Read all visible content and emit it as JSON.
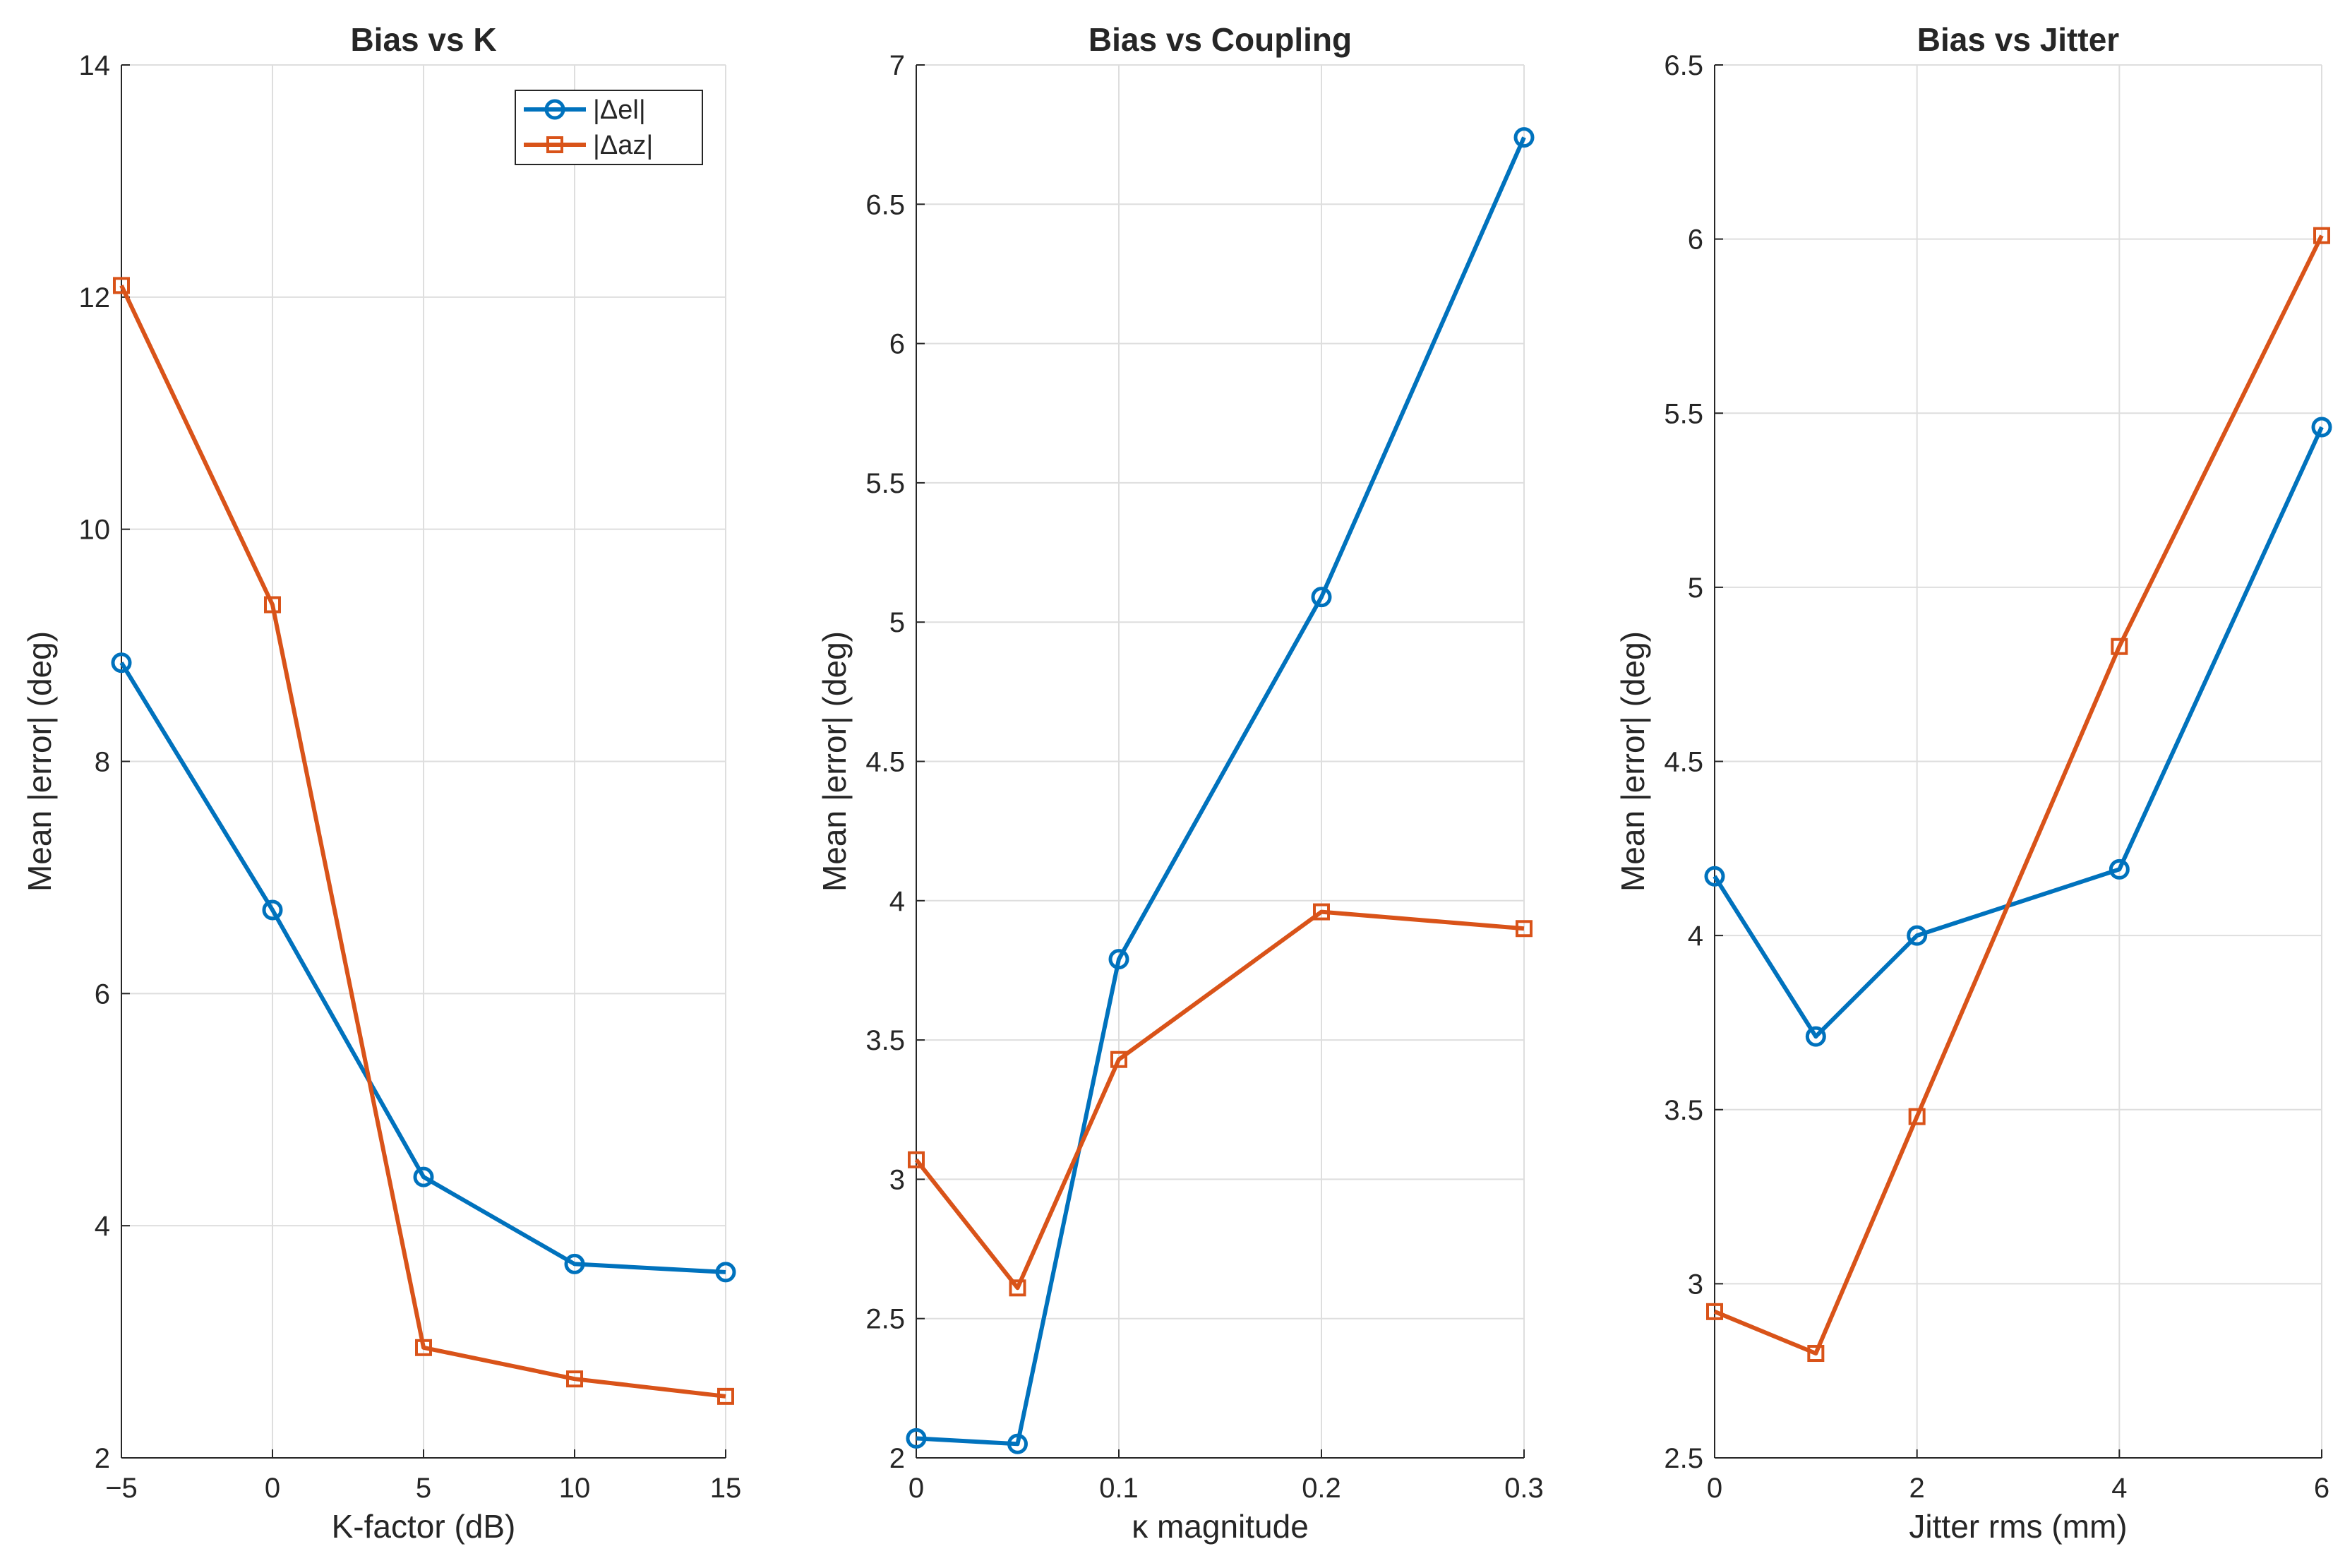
{
  "colors": {
    "series1": "#0072BD",
    "series2": "#D95319",
    "grid": "#dedede",
    "axis": "#262626"
  },
  "chart_data": [
    {
      "type": "line",
      "title": "Bias vs K",
      "xlabel": "K-factor (dB)",
      "ylabel": "Mean |error| (deg)",
      "xlim": [
        -5,
        15
      ],
      "ylim": [
        2,
        14
      ],
      "xticks": [
        -5,
        0,
        5,
        10,
        15
      ],
      "xtick_labels": [
        "−5",
        "0",
        "5",
        "10",
        "15"
      ],
      "yticks": [
        2,
        4,
        6,
        8,
        10,
        12,
        14
      ],
      "ytick_labels": [
        "2",
        "4",
        "6",
        "8",
        "10",
        "12",
        "14"
      ],
      "grid": true,
      "legend": "top-right",
      "x": [
        -5,
        0,
        5,
        10,
        15
      ],
      "series": [
        {
          "name": "|Δel|",
          "marker": "circle",
          "values": [
            8.85,
            6.72,
            4.42,
            3.67,
            3.6
          ]
        },
        {
          "name": "|Δaz|",
          "marker": "square",
          "values": [
            12.1,
            9.35,
            2.95,
            2.68,
            2.53
          ]
        }
      ]
    },
    {
      "type": "line",
      "title": "Bias vs Coupling",
      "xlabel": "κ  magnitude",
      "ylabel": "Mean |error| (deg)",
      "xlim": [
        0,
        0.3
      ],
      "ylim": [
        2,
        7
      ],
      "xticks": [
        0,
        0.1,
        0.2,
        0.3
      ],
      "xtick_labels": [
        "0",
        "0.1",
        "0.2",
        "0.3"
      ],
      "yticks": [
        2,
        2.5,
        3,
        3.5,
        4,
        4.5,
        5,
        5.5,
        6,
        6.5,
        7
      ],
      "ytick_labels": [
        "2",
        "2.5",
        "3",
        "3.5",
        "4",
        "4.5",
        "5",
        "5.5",
        "6",
        "6.5",
        "7"
      ],
      "grid": true,
      "x": [
        0,
        0.05,
        0.1,
        0.2,
        0.3
      ],
      "series": [
        {
          "marker": "circle",
          "values": [
            2.07,
            2.05,
            3.79,
            5.09,
            6.74
          ]
        },
        {
          "marker": "square",
          "values": [
            3.07,
            2.61,
            3.43,
            3.96,
            3.9
          ]
        }
      ]
    },
    {
      "type": "line",
      "title": "Bias vs Jitter",
      "xlabel": "Jitter rms (mm)",
      "ylabel": "Mean |error| (deg)",
      "xlim": [
        0,
        6
      ],
      "ylim": [
        2.5,
        6.5
      ],
      "xticks": [
        0,
        2,
        4,
        6
      ],
      "xtick_labels": [
        "0",
        "2",
        "4",
        "6"
      ],
      "yticks": [
        2.5,
        3,
        3.5,
        4,
        4.5,
        5,
        5.5,
        6,
        6.5
      ],
      "ytick_labels": [
        "2.5",
        "3",
        "3.5",
        "4",
        "4.5",
        "5",
        "5.5",
        "6",
        "6.5"
      ],
      "grid": true,
      "x": [
        0,
        1,
        2,
        4,
        6
      ],
      "series": [
        {
          "marker": "circle",
          "values": [
            4.17,
            3.71,
            4.0,
            4.19,
            5.46
          ]
        },
        {
          "marker": "square",
          "values": [
            2.92,
            2.8,
            3.48,
            4.83,
            6.01
          ]
        }
      ]
    }
  ]
}
